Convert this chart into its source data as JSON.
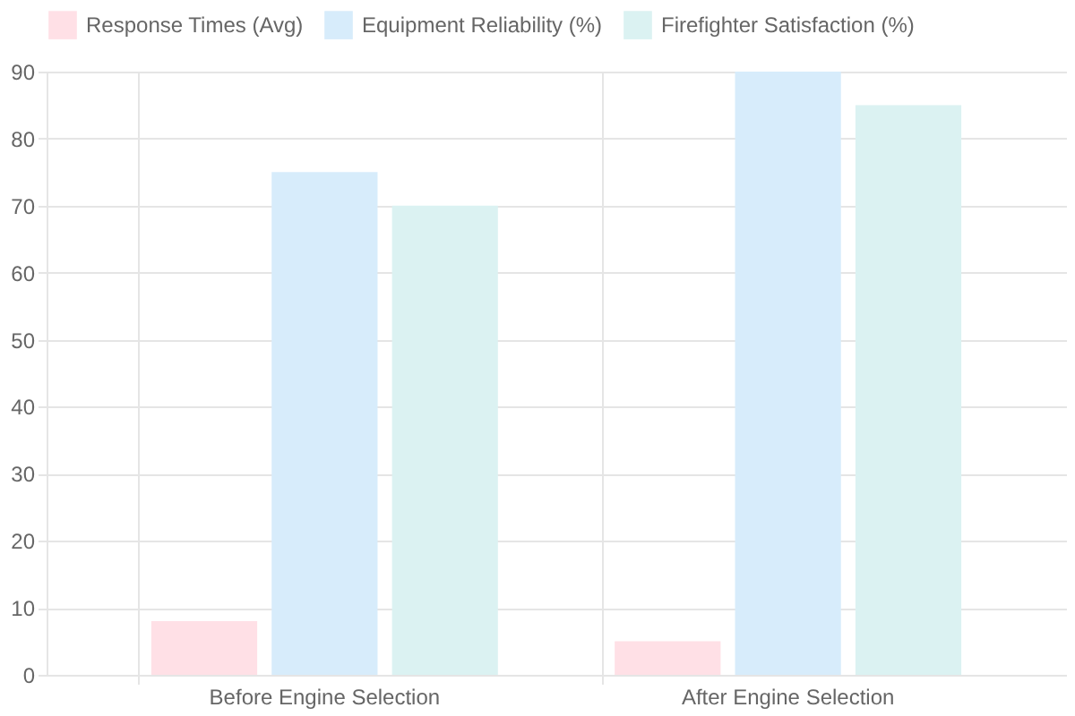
{
  "chart_data": {
    "type": "bar",
    "categories": [
      "Before Engine Selection",
      "After Engine Selection"
    ],
    "series": [
      {
        "name": "Response Times (Avg)",
        "color": "#ffe0e6",
        "values": [
          8,
          5
        ]
      },
      {
        "name": "Equipment Reliability (%)",
        "color": "#d7ecfb",
        "values": [
          75,
          90
        ]
      },
      {
        "name": "Firefighter Satisfaction (%)",
        "color": "#dbf2f2",
        "values": [
          70,
          85
        ]
      }
    ],
    "ylim": [
      0,
      90
    ],
    "yticks": [
      0,
      10,
      20,
      30,
      40,
      50,
      60,
      70,
      80,
      90
    ],
    "grid": true,
    "legend": "top"
  }
}
